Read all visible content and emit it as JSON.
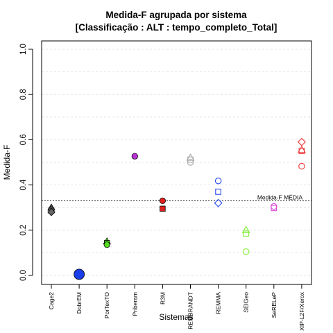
{
  "chart_data": {
    "type": "scatter",
    "title": "Medida-F agrupada por sistema",
    "subtitle": "[Classificação : ALT : tempo_completo_Total]",
    "xlabel": "Sistemas",
    "ylabel": "Medida-F",
    "ylim": [
      0,
      1
    ],
    "yticks": [
      "0.0",
      "0.2",
      "0.4",
      "0.6",
      "0.8",
      "1.0"
    ],
    "grid": true,
    "categories": [
      "Cage2",
      "DobrEM",
      "PorTexTO",
      "Priberam",
      "R3M",
      "REMBRANDT",
      "REMMA",
      "SEIGeo",
      "SeRELeP",
      "XIP-L2F/Xerox"
    ],
    "points": [
      {
        "category": "Cage2",
        "y": 0.3,
        "shape": "triangle",
        "color": "#666666",
        "filled": true
      },
      {
        "category": "Cage2",
        "y": 0.292,
        "shape": "circle",
        "color": "#666666",
        "filled": true
      },
      {
        "category": "Cage2",
        "y": 0.286,
        "shape": "square",
        "color": "#666666",
        "filled": true
      },
      {
        "category": "Cage2",
        "y": 0.28,
        "shape": "diamond",
        "color": "#666666",
        "filled": true
      },
      {
        "category": "DobrEM",
        "y": 0.005,
        "shape": "circle-large",
        "color": "#1a3ee8",
        "filled": true
      },
      {
        "category": "PorTexTO",
        "y": 0.15,
        "shape": "triangle",
        "color": "#55dd22",
        "filled": true
      },
      {
        "category": "PorTexTO",
        "y": 0.143,
        "shape": "square",
        "color": "#55dd22",
        "filled": true
      },
      {
        "category": "PorTexTO",
        "y": 0.136,
        "shape": "circle",
        "color": "#55dd22",
        "filled": true
      },
      {
        "category": "Priberam",
        "y": 0.527,
        "shape": "circle",
        "color": "#b833d6",
        "filled": true
      },
      {
        "category": "R3M",
        "y": 0.33,
        "shape": "circle",
        "color": "#e02020",
        "filled": true
      },
      {
        "category": "R3M",
        "y": 0.295,
        "shape": "square",
        "color": "#e02020",
        "filled": true
      },
      {
        "category": "REMBRANDT",
        "y": 0.52,
        "shape": "triangle",
        "color": "#aaaaaa",
        "filled": false
      },
      {
        "category": "REMBRANDT",
        "y": 0.512,
        "shape": "square",
        "color": "#aaaaaa",
        "filled": false
      },
      {
        "category": "REMBRANDT",
        "y": 0.5,
        "shape": "circle",
        "color": "#aaaaaa",
        "filled": false
      },
      {
        "category": "REMMA",
        "y": 0.418,
        "shape": "circle",
        "color": "#3355ee",
        "filled": false
      },
      {
        "category": "REMMA",
        "y": 0.37,
        "shape": "square",
        "color": "#3355ee",
        "filled": false
      },
      {
        "category": "REMMA",
        "y": 0.32,
        "shape": "diamond",
        "color": "#3355ee",
        "filled": false
      },
      {
        "category": "SEIGeo",
        "y": 0.2,
        "shape": "triangle",
        "color": "#88ee44",
        "filled": false
      },
      {
        "category": "SEIGeo",
        "y": 0.185,
        "shape": "square",
        "color": "#88ee44",
        "filled": false
      },
      {
        "category": "SEIGeo",
        "y": 0.105,
        "shape": "circle",
        "color": "#88ee44",
        "filled": false
      },
      {
        "category": "SeRELeP",
        "y": 0.305,
        "shape": "circle",
        "color": "#dd55dd",
        "filled": false
      },
      {
        "category": "SeRELeP",
        "y": 0.298,
        "shape": "square",
        "color": "#dd55dd",
        "filled": false
      },
      {
        "category": "XIP-L2F/Xerox",
        "y": 0.59,
        "shape": "diamond",
        "color": "#ee4444",
        "filled": false
      },
      {
        "category": "XIP-L2F/Xerox",
        "y": 0.555,
        "shape": "triangle",
        "color": "#ee4444",
        "filled": false
      },
      {
        "category": "XIP-L2F/Xerox",
        "y": 0.55,
        "shape": "square",
        "color": "#ee4444",
        "filled": false
      },
      {
        "category": "XIP-L2F/Xerox",
        "y": 0.483,
        "shape": "circle",
        "color": "#ee4444",
        "filled": false
      }
    ],
    "reference_line": {
      "y": 0.33,
      "label": "Medida-F MÉDIA"
    }
  }
}
